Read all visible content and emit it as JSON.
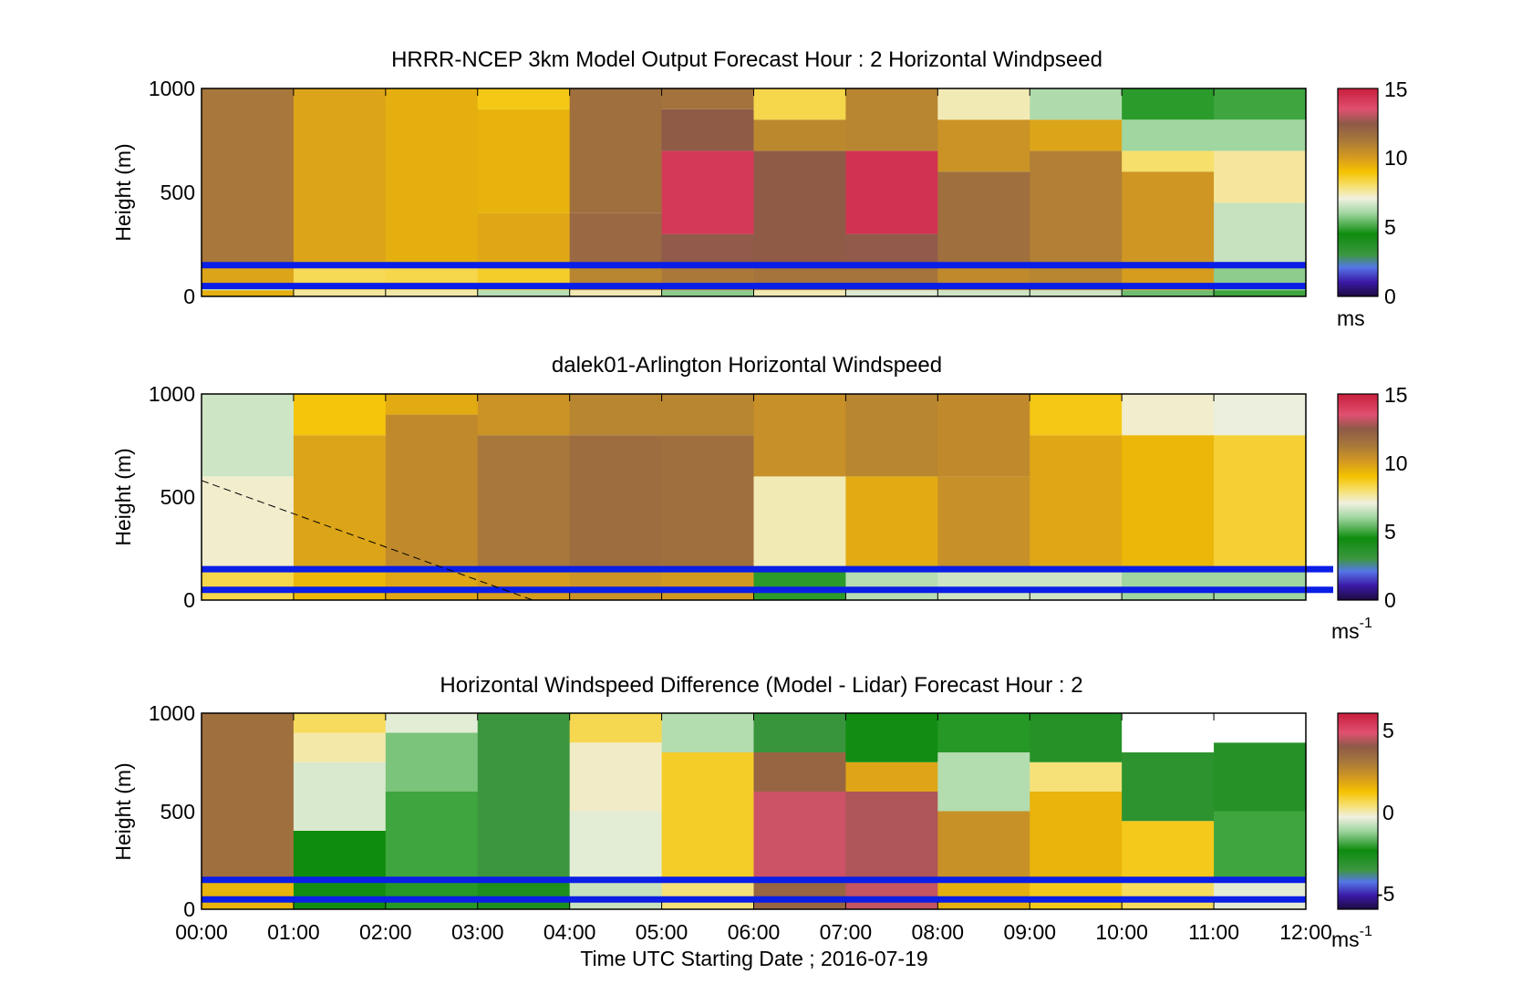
{
  "window": {
    "title": ""
  },
  "chart_data": [
    {
      "type": "heatmap",
      "title": "HRRR-NCEP 3km Model Output   Forecast Hour : 2 Horizontal Windpseed",
      "ylabel": "Height (m)",
      "xlabel": "",
      "ylim": [
        0,
        1000
      ],
      "yticks": [
        "0",
        "500",
        "1000"
      ],
      "xticks": [
        "00:00",
        "01:00",
        "02:00",
        "03:00",
        "04:00",
        "05:00",
        "06:00",
        "07:00",
        "08:00",
        "09:00",
        "10:00",
        "11:00",
        "12:00"
      ],
      "x_labels_shown": false,
      "colorbar": {
        "min": 0,
        "max": 15,
        "ticks": [
          "0",
          "5",
          "10",
          "15"
        ],
        "unit": "ms",
        "unit_sup": ""
      },
      "reference_heights_m": [
        150,
        50
      ],
      "reference_line_color": "#0a1ee6",
      "columns_hourly_ms": [
        [
          {
            "z": [
              0,
              30
            ],
            "v": 9.5
          },
          {
            "z": [
              30,
              50
            ],
            "v": 6.5
          },
          {
            "z": [
              50,
              150
            ],
            "v": 9.8
          },
          {
            "z": [
              150,
              1000
            ],
            "v": 11.3
          }
        ],
        [
          {
            "z": [
              0,
              30
            ],
            "v": 7.6
          },
          {
            "z": [
              30,
              150
            ],
            "v": 8.2
          },
          {
            "z": [
              150,
              1000
            ],
            "v": 9.8
          }
        ],
        [
          {
            "z": [
              0,
              30
            ],
            "v": 7.5
          },
          {
            "z": [
              30,
              150
            ],
            "v": 8.3
          },
          {
            "z": [
              150,
              1000
            ],
            "v": 9.5
          }
        ],
        [
          {
            "z": [
              0,
              30
            ],
            "v": 6.3
          },
          {
            "z": [
              30,
              150
            ],
            "v": 8.6
          },
          {
            "z": [
              150,
              400
            ],
            "v": 9.7
          },
          {
            "z": [
              400,
              900
            ],
            "v": 9.4
          },
          {
            "z": [
              900,
              1000
            ],
            "v": 8.8
          }
        ],
        [
          {
            "z": [
              0,
              30
            ],
            "v": 7.4
          },
          {
            "z": [
              30,
              150
            ],
            "v": 10.8
          },
          {
            "z": [
              150,
              400
            ],
            "v": 11.9
          },
          {
            "z": [
              400,
              1000
            ],
            "v": 11.6
          }
        ],
        [
          {
            "z": [
              0,
              30
            ],
            "v": 5.8
          },
          {
            "z": [
              30,
              150
            ],
            "v": 11.2
          },
          {
            "z": [
              150,
              300
            ],
            "v": 12.5
          },
          {
            "z": [
              300,
              700
            ],
            "v": 14.2
          },
          {
            "z": [
              700,
              900
            ],
            "v": 12.4
          },
          {
            "z": [
              900,
              1000
            ],
            "v": 11.5
          }
        ],
        [
          {
            "z": [
              0,
              30
            ],
            "v": 7.4
          },
          {
            "z": [
              30,
              150
            ],
            "v": 11.4
          },
          {
            "z": [
              150,
              700
            ],
            "v": 12.4
          },
          {
            "z": [
              700,
              850
            ],
            "v": 10.7
          },
          {
            "z": [
              850,
              1000
            ],
            "v": 8.3
          }
        ],
        [
          {
            "z": [
              0,
              30
            ],
            "v": 6.8
          },
          {
            "z": [
              30,
              150
            ],
            "v": 11.4
          },
          {
            "z": [
              150,
              300
            ],
            "v": 12.5
          },
          {
            "z": [
              300,
              700
            ],
            "v": 14.4
          },
          {
            "z": [
              700,
              1000
            ],
            "v": 10.8
          }
        ],
        [
          {
            "z": [
              0,
              30
            ],
            "v": 6.6
          },
          {
            "z": [
              30,
              150
            ],
            "v": 10.6
          },
          {
            "z": [
              150,
              600
            ],
            "v": 11.6
          },
          {
            "z": [
              600,
              850
            ],
            "v": 10.3
          },
          {
            "z": [
              850,
              1000
            ],
            "v": 7.4
          }
        ],
        [
          {
            "z": [
              0,
              30
            ],
            "v": 6.6
          },
          {
            "z": [
              30,
              150
            ],
            "v": 10.8
          },
          {
            "z": [
              150,
              700
            ],
            "v": 11.0
          },
          {
            "z": [
              700,
              850
            ],
            "v": 9.8
          },
          {
            "z": [
              850,
              1000
            ],
            "v": 6.2
          }
        ],
        [
          {
            "z": [
              0,
              30
            ],
            "v": 5.5
          },
          {
            "z": [
              30,
              150
            ],
            "v": 10.0
          },
          {
            "z": [
              150,
              600
            ],
            "v": 10.2
          },
          {
            "z": [
              600,
              700
            ],
            "v": 8.0
          },
          {
            "z": [
              700,
              850
            ],
            "v": 6.0
          },
          {
            "z": [
              850,
              1000
            ],
            "v": 4.8
          }
        ],
        [
          {
            "z": [
              0,
              30
            ],
            "v": 5.0
          },
          {
            "z": [
              30,
              150
            ],
            "v": 5.8
          },
          {
            "z": [
              150,
              450
            ],
            "v": 6.5
          },
          {
            "z": [
              450,
              700
            ],
            "v": 7.6
          },
          {
            "z": [
              700,
              850
            ],
            "v": 6.0
          },
          {
            "z": [
              850,
              1000
            ],
            "v": 5.0
          }
        ]
      ]
    },
    {
      "type": "heatmap",
      "title": "dalek01-Arlington  Horizontal Windspeed",
      "ylabel": "Height (m)",
      "xlabel": "",
      "ylim": [
        0,
        1000
      ],
      "yticks": [
        "0",
        "500",
        "1000"
      ],
      "x_labels_shown": false,
      "colorbar": {
        "min": 0,
        "max": 15,
        "ticks": [
          "0",
          "5",
          "10",
          "15"
        ],
        "unit": "ms",
        "unit_sup": "-1"
      },
      "reference_heights_m": [
        150,
        50
      ],
      "dashed_line_hours_m": [
        [
          0,
          580
        ],
        [
          3.6,
          0
        ]
      ],
      "columns_hourly_ms": [
        [
          {
            "z": [
              0,
              150
            ],
            "v": 8.3
          },
          {
            "z": [
              150,
              600
            ],
            "v": 7.2
          },
          {
            "z": [
              600,
              1000
            ],
            "v": 6.6
          }
        ],
        [
          {
            "z": [
              0,
              150
            ],
            "v": 9.3
          },
          {
            "z": [
              150,
              800
            ],
            "v": 9.8
          },
          {
            "z": [
              800,
              1000
            ],
            "v": 8.9
          }
        ],
        [
          {
            "z": [
              0,
              150
            ],
            "v": 9.7
          },
          {
            "z": [
              150,
              900
            ],
            "v": 10.6
          },
          {
            "z": [
              900,
              1000
            ],
            "v": 9.6
          }
        ],
        [
          {
            "z": [
              0,
              150
            ],
            "v": 10.0
          },
          {
            "z": [
              150,
              800
            ],
            "v": 11.3
          },
          {
            "z": [
              800,
              1000
            ],
            "v": 10.3
          }
        ],
        [
          {
            "z": [
              0,
              150
            ],
            "v": 10.3
          },
          {
            "z": [
              150,
              800
            ],
            "v": 11.7
          },
          {
            "z": [
              800,
              1000
            ],
            "v": 10.8
          }
        ],
        [
          {
            "z": [
              0,
              150
            ],
            "v": 10.1
          },
          {
            "z": [
              150,
              800
            ],
            "v": 11.6
          },
          {
            "z": [
              800,
              1000
            ],
            "v": 10.8
          }
        ],
        [
          {
            "z": [
              0,
              150
            ],
            "v": 4.8
          },
          {
            "z": [
              150,
              600
            ],
            "v": 7.4
          },
          {
            "z": [
              600,
              1000
            ],
            "v": 10.4
          }
        ],
        [
          {
            "z": [
              0,
              150
            ],
            "v": 6.3
          },
          {
            "z": [
              150,
              600
            ],
            "v": 9.6
          },
          {
            "z": [
              600,
              1000
            ],
            "v": 10.8
          }
        ],
        [
          {
            "z": [
              0,
              150
            ],
            "v": 6.6
          },
          {
            "z": [
              150,
              600
            ],
            "v": 10.4
          },
          {
            "z": [
              600,
              1000
            ],
            "v": 10.6
          }
        ],
        [
          {
            "z": [
              0,
              150
            ],
            "v": 6.6
          },
          {
            "z": [
              150,
              800
            ],
            "v": 9.7
          },
          {
            "z": [
              800,
              1000
            ],
            "v": 8.8
          }
        ],
        [
          {
            "z": [
              0,
              150
            ],
            "v": 6.0
          },
          {
            "z": [
              150,
              800
            ],
            "v": 9.3
          },
          {
            "z": [
              800,
              1000
            ],
            "v": 7.2
          }
        ],
        [
          {
            "z": [
              0,
              150
            ],
            "v": 6.0
          },
          {
            "z": [
              150,
              800
            ],
            "v": 8.5
          },
          {
            "z": [
              800,
              1000
            ],
            "v": 7.0
          }
        ]
      ]
    },
    {
      "type": "heatmap",
      "title": "Horizontal Windspeed Difference (Model - Lidar) Forecast Hour : 2",
      "ylabel": "Height (m)",
      "xlabel": "Time UTC  Starting Date ; 2016-07-19",
      "ylim": [
        0,
        1000
      ],
      "yticks": [
        "0",
        "500",
        "1000"
      ],
      "xticks": [
        "00:00",
        "01:00",
        "02:00",
        "03:00",
        "04:00",
        "05:00",
        "06:00",
        "07:00",
        "08:00",
        "09:00",
        "10:00",
        "11:00",
        "12:00"
      ],
      "x_labels_shown": true,
      "colorbar": {
        "min": -6,
        "max": 6,
        "ticks": [
          "-5",
          "0",
          "5"
        ],
        "unit": "ms",
        "unit_sup": "-1"
      },
      "reference_heights_m": [
        150,
        50
      ],
      "columns_hourly_ms": [
        [
          {
            "z": [
              0,
              150
            ],
            "v": 1.5
          },
          {
            "z": [
              150,
              1000
            ],
            "v": 3.3
          }
        ],
        [
          {
            "z": [
              0,
              150
            ],
            "v": -2.5
          },
          {
            "z": [
              150,
              400
            ],
            "v": -2.4
          },
          {
            "z": [
              400,
              750
            ],
            "v": -0.6
          },
          {
            "z": [
              750,
              900
            ],
            "v": 0.0
          },
          {
            "z": [
              900,
              1000
            ],
            "v": 0.5
          }
        ],
        [
          {
            "z": [
              0,
              150
            ],
            "v": -2.2
          },
          {
            "z": [
              150,
              600
            ],
            "v": -2.0
          },
          {
            "z": [
              600,
              900
            ],
            "v": -1.5
          },
          {
            "z": [
              900,
              1000
            ],
            "v": -0.5
          }
        ],
        [
          {
            "z": [
              0,
              150
            ],
            "v": -2.8
          },
          {
            "z": [
              150,
              1000
            ],
            "v": -3.6
          }
        ],
        [
          {
            "z": [
              0,
              150
            ],
            "v": -0.8
          },
          {
            "z": [
              150,
              500
            ],
            "v": -0.5
          },
          {
            "z": [
              500,
              850
            ],
            "v": -0.2
          },
          {
            "z": [
              850,
              1000
            ],
            "v": 0.6
          }
        ],
        [
          {
            "z": [
              0,
              150
            ],
            "v": 0.3
          },
          {
            "z": [
              150,
              800
            ],
            "v": 0.9
          },
          {
            "z": [
              800,
              1000
            ],
            "v": -1.0
          }
        ],
        [
          {
            "z": [
              0,
              150
            ],
            "v": 3.6
          },
          {
            "z": [
              150,
              600
            ],
            "v": 4.6
          },
          {
            "z": [
              600,
              800
            ],
            "v": 3.6
          },
          {
            "z": [
              800,
              1000
            ],
            "v": -3.5
          }
        ],
        [
          {
            "z": [
              0,
              150
            ],
            "v": 4.5
          },
          {
            "z": [
              150,
              600
            ],
            "v": 4.3
          },
          {
            "z": [
              600,
              750
            ],
            "v": 1.8
          },
          {
            "z": [
              750,
              1000
            ],
            "v": -2.5
          }
        ],
        [
          {
            "z": [
              0,
              150
            ],
            "v": 1.6
          },
          {
            "z": [
              150,
              500
            ],
            "v": 2.3
          },
          {
            "z": [
              500,
              800
            ],
            "v": -1.0
          },
          {
            "z": [
              800,
              1000
            ],
            "v": -2.2
          }
        ],
        [
          {
            "z": [
              0,
              150
            ],
            "v": 1.0
          },
          {
            "z": [
              150,
              600
            ],
            "v": 1.5
          },
          {
            "z": [
              600,
              750
            ],
            "v": 0.3
          },
          {
            "z": [
              750,
              1000
            ],
            "v": -3.0
          }
        ],
        [
          {
            "z": [
              0,
              150
            ],
            "v": 0.5
          },
          {
            "z": [
              150,
              450
            ],
            "v": 1.0
          },
          {
            "z": [
              450,
              800
            ],
            "v": -3.2
          },
          {
            "z": [
              800,
              1000
            ],
            "v": null
          }
        ],
        [
          {
            "z": [
              0,
              150
            ],
            "v": -0.5
          },
          {
            "z": [
              150,
              500
            ],
            "v": -2.0
          },
          {
            "z": [
              500,
              850
            ],
            "v": -3.0
          },
          {
            "z": [
              850,
              1000
            ],
            "v": null
          }
        ]
      ]
    }
  ]
}
